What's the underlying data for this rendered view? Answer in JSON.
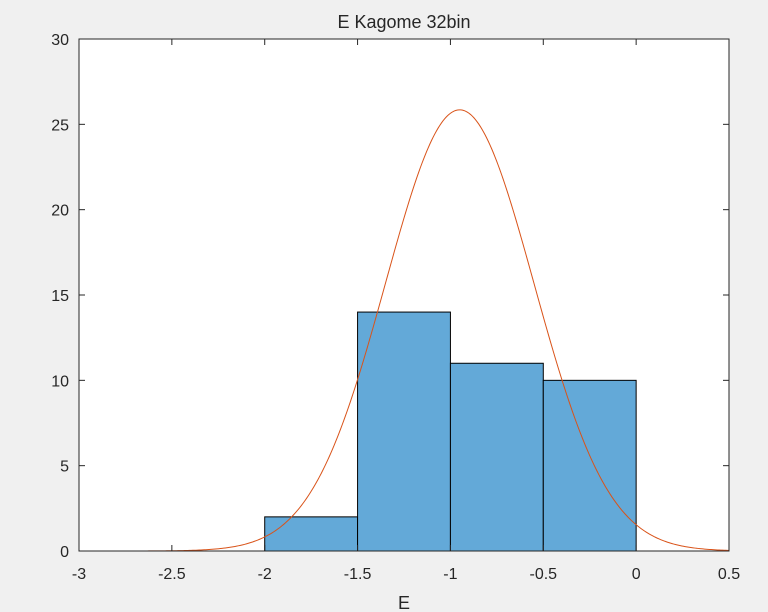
{
  "figure": {
    "background": "#f0f0f0",
    "axes_background": "#ffffff",
    "axis_color": "#262626"
  },
  "chart_data": {
    "type": "bar",
    "title": "E Kagome 32bin",
    "xlabel": "E",
    "ylabel": "",
    "xlim": [
      -3,
      0.5
    ],
    "ylim": [
      0,
      30
    ],
    "xticks": [
      -3,
      -2.5,
      -2,
      -1.5,
      -1,
      -0.5,
      0,
      0.5
    ],
    "xtick_labels": [
      "-3",
      "-2.5",
      "-2",
      "-1.5",
      "-1",
      "-0.5",
      "0",
      "0.5"
    ],
    "yticks": [
      0,
      5,
      10,
      15,
      20,
      25,
      30
    ],
    "ytick_labels": [
      "0",
      "5",
      "10",
      "15",
      "20",
      "25",
      "30"
    ],
    "histogram": {
      "bin_edges": [
        -2,
        -1.5,
        -1,
        -0.5,
        0
      ],
      "counts": [
        2,
        14,
        11,
        10
      ],
      "color": "#63a9d8",
      "edge_color": "#000000"
    },
    "curve": {
      "kind": "normal_fit",
      "mean": -0.95,
      "std": 0.4,
      "peak": 25.85,
      "color": "#d95319"
    }
  }
}
